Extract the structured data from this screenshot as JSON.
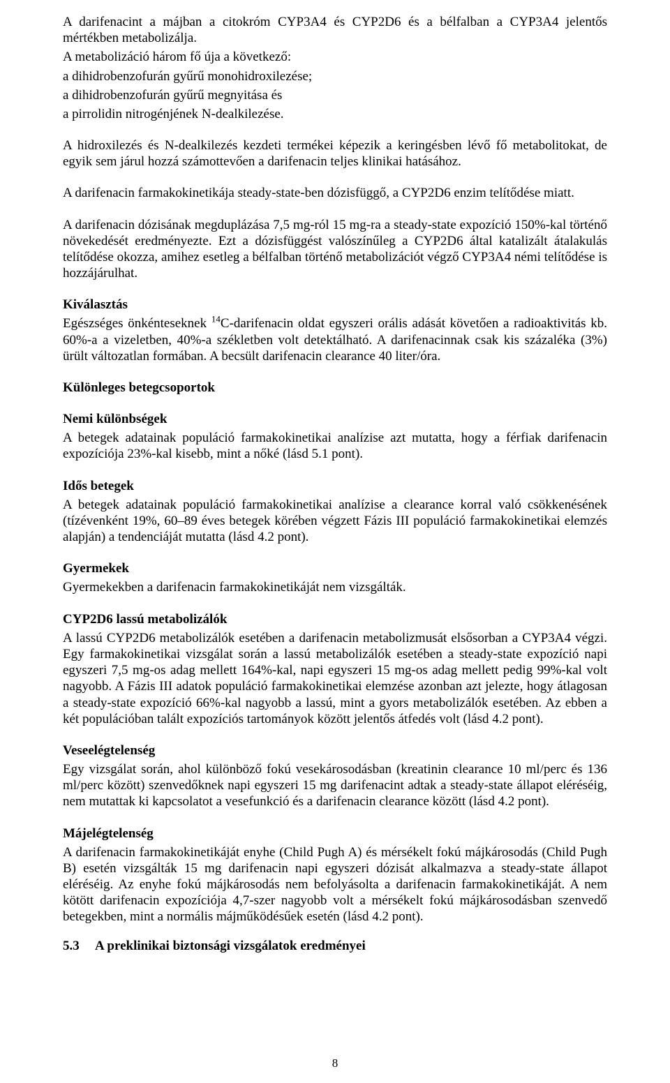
{
  "para1": "A darifenacint a májban a citokróm CYP3A4 és CYP2D6 és a bélfalban a CYP3A4 jelentős mértékben metabolizálja.",
  "para2a": "A metabolizáció három fő úja a következő:",
  "para2b": "a dihidrobenzofurán gyűrű monohidroxilezése;",
  "para2c": "a dihidrobenzofurán gyűrű megnyitása és",
  "para2d": "a pirrolidin nitrogénjének N-dealkilezése.",
  "para3": "A hidroxilezés és N-dealkilezés kezdeti termékei képezik a keringésben lévő fő metabolitokat, de egyik sem járul hozzá számottevően a darifenacin teljes klinikai hatásához.",
  "para4": "A darifenacin farmakokinetikája steady-state-ben dózisfüggő, a CYP2D6 enzim telítődése miatt.",
  "para5": "A darifenacin dózisának megduplázása 7,5 mg-ról 15 mg-ra a steady-state expozíció 150%-kal történő növekedését eredményezte. Ezt a dózisfüggést valószínűleg a CYP2D6 által katalizált átalakulás telítődése okozza, amihez esetleg a bélfalban történő metabolizációt végző CYP3A4 némi telítődése is hozzájárulhat.",
  "kivalasztas_heading": "Kiválasztás",
  "kivalasztas_body_a": "Egészséges önkénteseknek ",
  "kivalasztas_body_b": "C-darifenacin oldat egyszeri orális adását követően a radioaktivitás kb. 60%-a a vizeletben, 40%-a székletben volt detektálható. A darifenacinnak csak kis százaléka (3%) ürült változatlan formában. A becsült darifenacin clearance 40 liter/óra.",
  "kulonleges_heading": "Különleges betegcsoportok",
  "nemi_heading": "Nemi különbségek",
  "nemi_body": "A betegek adatainak populáció farmakokinetikai analízise azt mutatta, hogy a férfiak darifenacin expozíciója 23%-kal kisebb, mint a nőké (lásd 5.1 pont).",
  "idos_heading": "Idős betegek",
  "idos_body": "A betegek adatainak populáció farmakokinetikai analízise a clearance korral való csökkenésének (tízévenként 19%, 60–89 éves betegek körében végzett Fázis III populáció farmakokinetikai elemzés alapján) a tendenciáját mutatta (lásd 4.2 pont).",
  "gyermek_heading": "Gyermekek",
  "gyermek_body": "Gyermekekben a darifenacin farmakokinetikáját nem vizsgálták.",
  "cyp_heading": "CYP2D6 lassú metabolizálók",
  "cyp_body": "A lassú CYP2D6 metabolizálók esetében a darifenacin metabolizmusát elsősorban a CYP3A4 végzi. Egy farmakokinetikai vizsgálat során a lassú metabolizálók esetében a steady-state expozíció napi egyszeri 7,5 mg-os adag mellett 164%-kal, napi egyszeri 15 mg-os adag mellett pedig 99%-kal volt nagyobb. A Fázis III adatok populáció farmakokinetikai elemzése azonban azt jelezte, hogy átlagosan a steady-state expozíció 66%-kal nagyobb a lassú, mint a gyors metabolizálók esetében. Az ebben a két populációban talált expozíciós tartományok között jelentős átfedés volt (lásd 4.2 pont).",
  "vese_heading": "Veseelégtelenség",
  "vese_body": "Egy vizsgálat során, ahol különböző fokú vesekárosodásban (kreatinin clearance 10 ml/perc és 136 ml/perc között) szenvedőknek napi egyszeri 15 mg darifenacint adtak a steady-state állapot eléréséig, nem mutattak ki kapcsolatot a vesefunkció és a darifenacin clearance között (lásd 4.2 pont).",
  "maj_heading": "Májelégtelenség",
  "maj_body": "A darifenacin farmakokinetikáját enyhe (Child Pugh A) és mérsékelt fokú májkárosodás (Child Pugh B) esetén vizsgálták 15 mg darifenacin napi egyszeri dózisát alkalmazva a steady-state állapot eléréséig. Az enyhe fokú májkárosodás nem befolyásolta a darifenacin farmakokinetikáját. A nem kötött darifenacin expozíciója 4,7-szer nagyobb volt a mérsékelt fokú májkárosodásban szenvedő betegekben, mint a normális májműködésűek esetén (lásd 4.2 pont).",
  "sec53_num": "5.3",
  "sec53_title": "A preklinikai biztonsági vizsgálatok eredményei",
  "sup14": "14",
  "page_number": "8"
}
